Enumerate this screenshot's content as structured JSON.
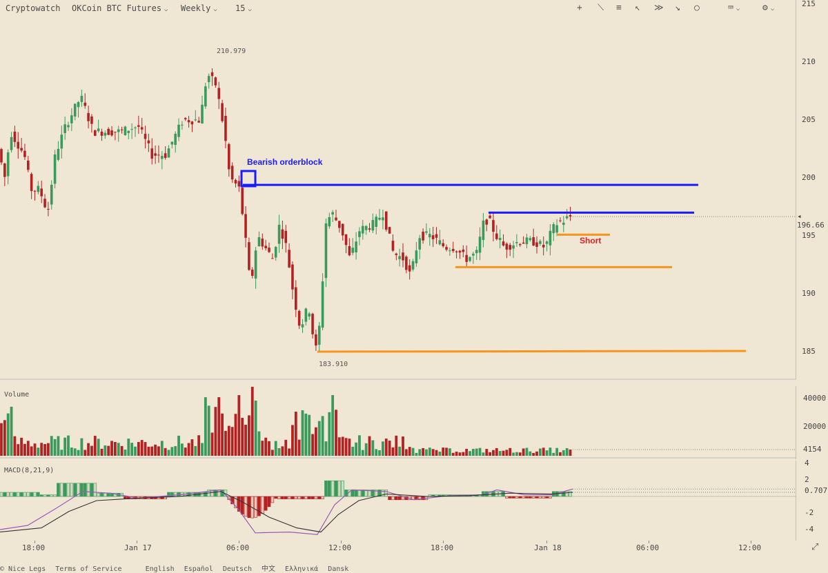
{
  "topbar": {
    "brand": "Cryptowatch",
    "market": "OKCoin BTC Futures",
    "period": "Weekly",
    "interval": "15"
  },
  "main": {
    "y_ticks": [
      "215",
      "210",
      "205",
      "200",
      "195",
      "190",
      "185"
    ],
    "price_tag": "196.66",
    "high_label": "210.979",
    "low_label": "183.910",
    "annotation_orderblock": "Bearish orderblock",
    "annotation_short": "Short"
  },
  "volume": {
    "title": "Volume",
    "ticks": [
      "40000",
      "20000"
    ],
    "last": "4154"
  },
  "macd": {
    "title": "MACD(8,21,9)",
    "ticks": [
      "4",
      "2",
      "-2",
      "-4"
    ],
    "last": "0.7071"
  },
  "x_ticks": [
    "18:00",
    "Jan 17",
    "06:00",
    "12:00",
    "18:00",
    "Jan 18",
    "06:00",
    "12:00"
  ],
  "footer": [
    "© Nice Legs",
    "Terms of Service",
    "English",
    "Español",
    "Deutsch",
    "中文",
    "Ελληνικά",
    "Dansk"
  ],
  "chart_data": {
    "type": "candlestick",
    "title": "OKCoin BTC Futures Weekly 15",
    "ylim": [
      182,
      216
    ],
    "high": 210.979,
    "low": 183.91,
    "last_price": 196.66,
    "horizontal_levels": [
      {
        "value": 199.4,
        "color": "#1a1aff"
      },
      {
        "value": 197.0,
        "color": "#1a1aff"
      },
      {
        "value": 195.1,
        "color": "#f7941d"
      },
      {
        "value": 192.3,
        "color": "#f7941d"
      },
      {
        "value": 185.0,
        "color": "#f7941d"
      }
    ],
    "colors": {
      "up": "#3a9a5b",
      "down": "#b32222",
      "ma_fast": "#9b59b6",
      "ma_slow": "#333333"
    }
  }
}
